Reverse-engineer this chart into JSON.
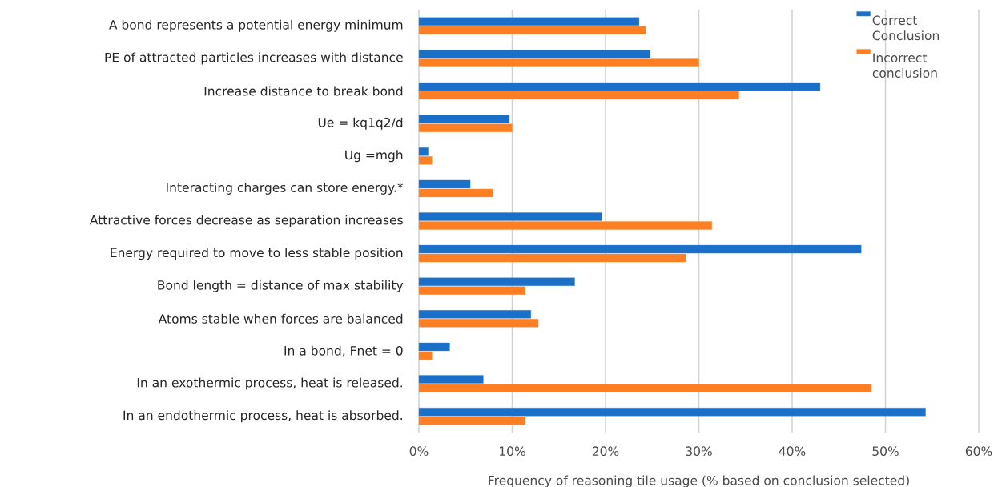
{
  "chart_data": {
    "type": "bar",
    "orientation": "horizontal",
    "xlabel": "Frequency of reasoning tile usage (% based on conclusion selected)",
    "categories": [
      "A bond represents a potential energy minimum",
      "PE of attracted particles increases with distance",
      "Increase distance to break bond",
      "Ue = kq1q2/d",
      "Ug =mgh",
      "Interacting charges can store energy.*",
      "Attractive forces decrease as separation increases",
      "Energy required to move to less stable position",
      "Bond length = distance of max stability",
      "Atoms stable when forces are balanced",
      "In a bond, Fnet = 0",
      "In an exothermic process, heat is released.",
      "In an endothermic process, heat is absorbed."
    ],
    "series": [
      {
        "name": "Correct Conclusion",
        "color": "#1a6fc8",
        "values": [
          23.6,
          24.8,
          43.0,
          9.7,
          1.0,
          5.5,
          19.6,
          47.4,
          16.7,
          12.0,
          3.3,
          6.9,
          54.3
        ]
      },
      {
        "name": "Incorrect conclusion",
        "color": "#fd7e23",
        "values": [
          24.3,
          30.0,
          34.3,
          10.0,
          1.4,
          7.9,
          31.4,
          28.6,
          11.4,
          12.8,
          1.4,
          48.5,
          11.4
        ]
      }
    ],
    "xlim": [
      0,
      60
    ],
    "xticks": [
      {
        "value": 0,
        "label": "0%"
      },
      {
        "value": 10,
        "label": "10%"
      },
      {
        "value": 20,
        "label": "20%"
      },
      {
        "value": 30,
        "label": "30%"
      },
      {
        "value": 40,
        "label": "40%"
      },
      {
        "value": 50,
        "label": "50%"
      },
      {
        "value": 60,
        "label": "60%"
      }
    ],
    "grid": "x",
    "legend": "top right"
  }
}
